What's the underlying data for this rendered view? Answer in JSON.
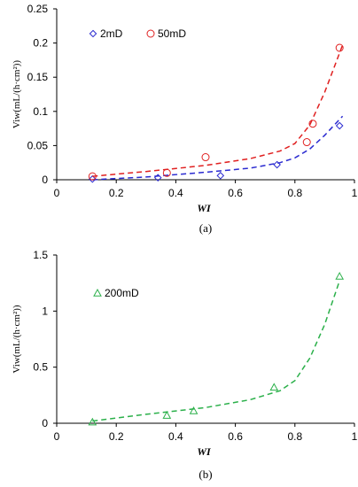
{
  "colors": {
    "axis": "#000000",
    "series_2mD": "#2a2ad0",
    "series_50mD": "#e02020",
    "series_200mD": "#2bb04a"
  },
  "chart_data": [
    {
      "type": "scatter",
      "panel_label": "(a)",
      "xlabel": "WI",
      "ylabel": "Viw(mL/(h·cm²))",
      "xlim": [
        0,
        1
      ],
      "ylim": [
        0,
        0.25
      ],
      "xticks": [
        "0",
        "0.2",
        "0.4",
        "0.6",
        "0.8",
        "1"
      ],
      "yticks": [
        "0",
        "0.05",
        "0.1",
        "0.15",
        "0.2",
        "0.25"
      ],
      "legend_position": "top-left",
      "grid": false,
      "series": [
        {
          "name": "2mD",
          "marker": "diamond",
          "color": "#2a2ad0",
          "points": [
            [
              0.12,
              0.001
            ],
            [
              0.34,
              0.003
            ],
            [
              0.55,
              0.006
            ],
            [
              0.74,
              0.022
            ],
            [
              0.95,
              0.079
            ]
          ],
          "fit": [
            [
              0.12,
              0.0
            ],
            [
              0.3,
              0.004
            ],
            [
              0.5,
              0.011
            ],
            [
              0.65,
              0.017
            ],
            [
              0.75,
              0.025
            ],
            [
              0.8,
              0.032
            ],
            [
              0.85,
              0.045
            ],
            [
              0.9,
              0.065
            ],
            [
              0.96,
              0.093
            ]
          ]
        },
        {
          "name": "50mD",
          "marker": "circle",
          "color": "#e02020",
          "points": [
            [
              0.12,
              0.005
            ],
            [
              0.37,
              0.01
            ],
            [
              0.5,
              0.033
            ],
            [
              0.84,
              0.055
            ],
            [
              0.86,
              0.082
            ],
            [
              0.95,
              0.193
            ]
          ],
          "fit": [
            [
              0.12,
              0.005
            ],
            [
              0.3,
              0.012
            ],
            [
              0.5,
              0.021
            ],
            [
              0.65,
              0.031
            ],
            [
              0.75,
              0.042
            ],
            [
              0.8,
              0.053
            ],
            [
              0.85,
              0.08
            ],
            [
              0.9,
              0.128
            ],
            [
              0.96,
              0.197
            ]
          ]
        }
      ]
    },
    {
      "type": "scatter",
      "panel_label": "(b)",
      "xlabel": "WI",
      "ylabel": "Viw(mL/(h·cm²))",
      "xlim": [
        0,
        1
      ],
      "ylim": [
        0,
        1.5
      ],
      "xticks": [
        "0",
        "0.2",
        "0.4",
        "0.6",
        "0.8",
        "1"
      ],
      "yticks": [
        "0",
        "0.5",
        "1",
        "1.5"
      ],
      "legend_position": "top-left",
      "grid": false,
      "series": [
        {
          "name": "200mD",
          "marker": "triangle",
          "color": "#2bb04a",
          "points": [
            [
              0.12,
              0.01
            ],
            [
              0.37,
              0.07
            ],
            [
              0.46,
              0.11
            ],
            [
              0.73,
              0.32
            ],
            [
              0.95,
              1.31
            ]
          ],
          "fit": [
            [
              0.12,
              0.02
            ],
            [
              0.3,
              0.08
            ],
            [
              0.5,
              0.14
            ],
            [
              0.65,
              0.21
            ],
            [
              0.75,
              0.29
            ],
            [
              0.8,
              0.38
            ],
            [
              0.85,
              0.58
            ],
            [
              0.9,
              0.88
            ],
            [
              0.95,
              1.27
            ]
          ]
        }
      ]
    }
  ]
}
